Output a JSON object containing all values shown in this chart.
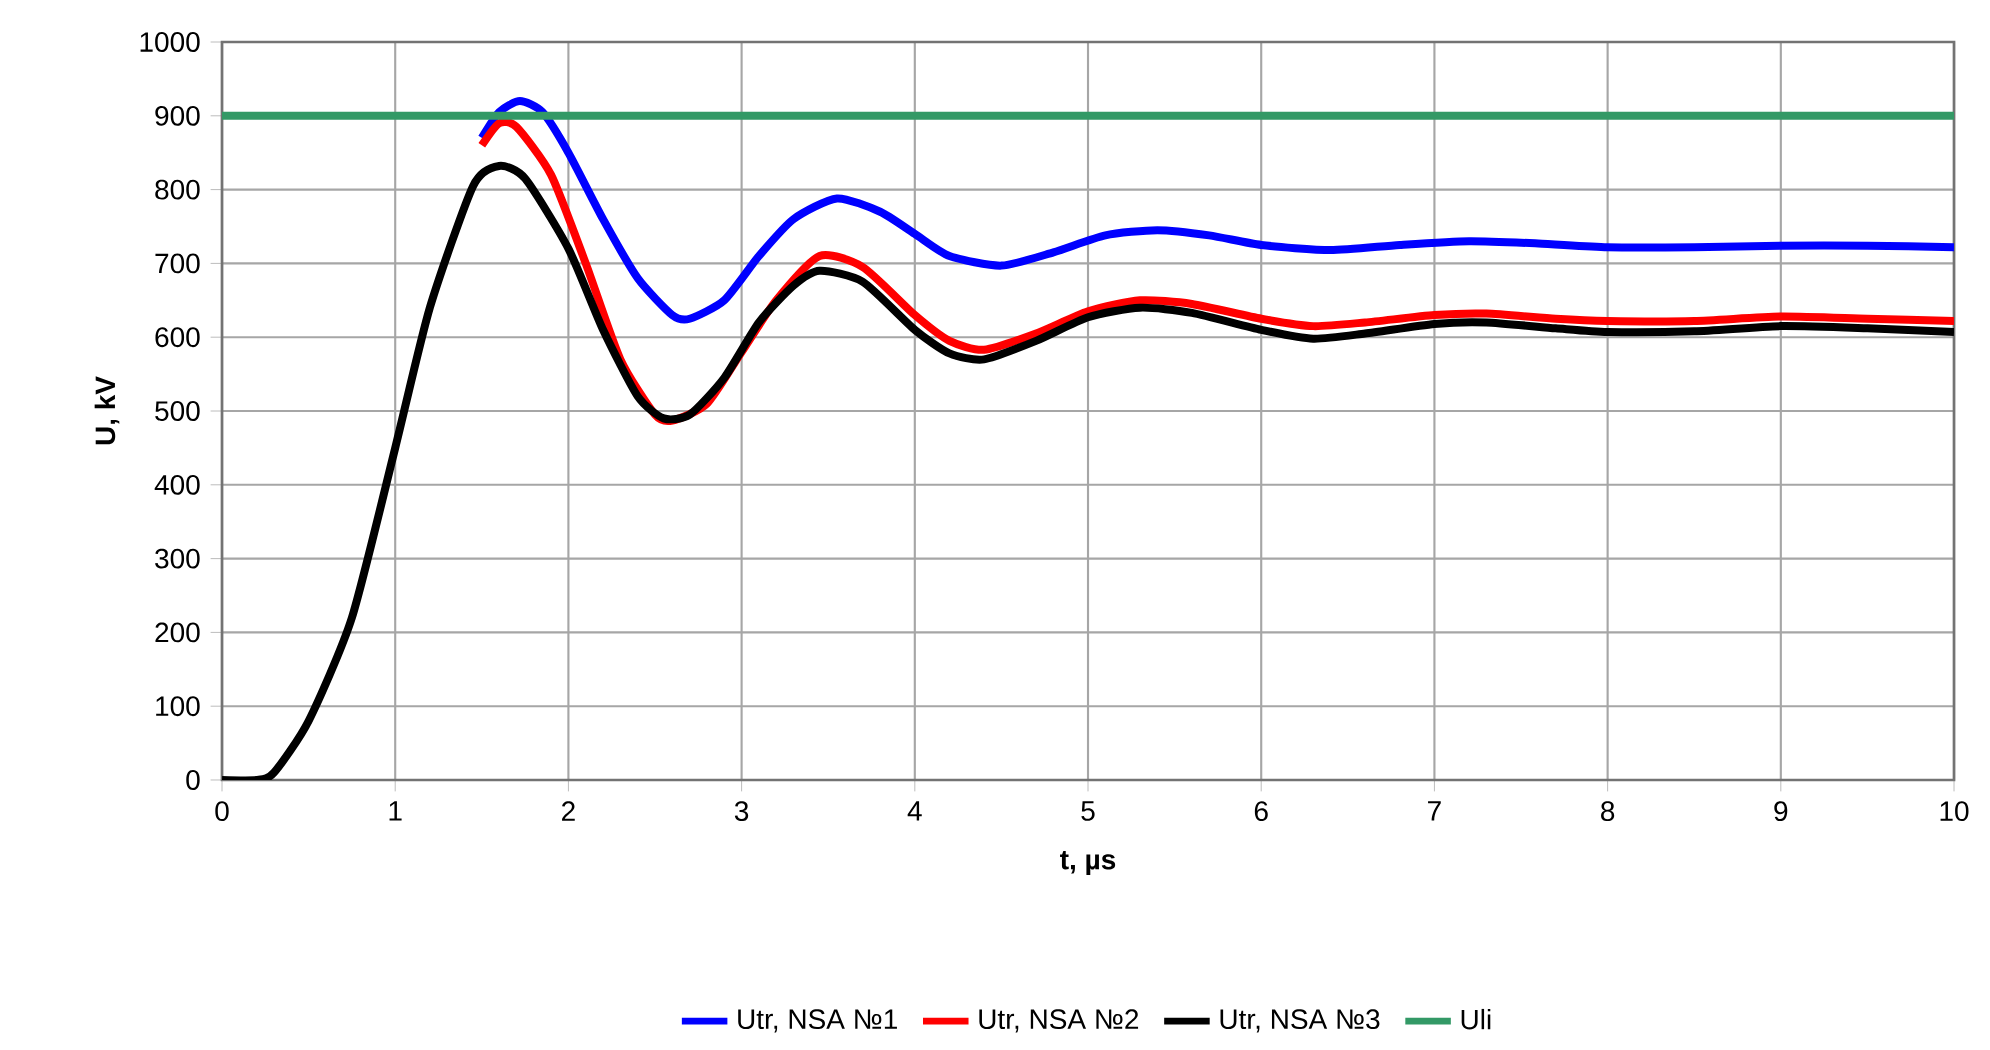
{
  "chart_data": {
    "type": "line",
    "xlabel": "t, µs",
    "ylabel": "U, kV",
    "xlim": [
      0,
      10
    ],
    "ylim": [
      0,
      1000
    ],
    "xticks": [
      0,
      1,
      2,
      3,
      4,
      5,
      6,
      7,
      8,
      9,
      10
    ],
    "yticks": [
      0,
      100,
      200,
      300,
      400,
      500,
      600,
      700,
      800,
      900,
      1000
    ],
    "grid": true,
    "legend": "bottom",
    "marker": "none",
    "line_style": "solid",
    "series": [
      {
        "name": "Utr, NSA №1",
        "color": "#0000ff",
        "x": [
          1.5,
          1.6,
          1.72,
          1.85,
          2.0,
          2.2,
          2.4,
          2.6,
          2.7,
          2.9,
          3.1,
          3.3,
          3.55,
          3.8,
          4.0,
          4.2,
          4.5,
          4.8,
          5.1,
          5.4,
          5.7,
          6.0,
          6.4,
          6.8,
          7.2,
          7.6,
          8.0,
          8.5,
          9.0,
          9.5,
          10
        ],
        "values": [
          870,
          905,
          920,
          905,
          850,
          760,
          680,
          630,
          625,
          650,
          710,
          760,
          788,
          770,
          740,
          710,
          697,
          715,
          738,
          745,
          738,
          725,
          718,
          725,
          730,
          727,
          722,
          722,
          724,
          724,
          722
        ]
      },
      {
        "name": "Utr, NSA №2",
        "color": "#ff0000",
        "x": [
          1.5,
          1.6,
          1.7,
          1.9,
          2.1,
          2.3,
          2.5,
          2.6,
          2.8,
          3.0,
          3.2,
          3.45,
          3.7,
          4.0,
          4.2,
          4.4,
          4.7,
          5.0,
          5.3,
          5.6,
          6.0,
          6.3,
          6.6,
          7.0,
          7.3,
          7.7,
          8.0,
          8.5,
          9.0,
          9.5,
          10
        ],
        "values": [
          860,
          890,
          885,
          820,
          700,
          570,
          495,
          487,
          510,
          580,
          650,
          710,
          695,
          630,
          595,
          583,
          605,
          635,
          650,
          645,
          625,
          615,
          620,
          630,
          632,
          625,
          622,
          622,
          628,
          625,
          622
        ]
      },
      {
        "name": "Utr, NSA №3",
        "color": "#000000",
        "x": [
          0,
          0.2,
          0.3,
          0.5,
          0.75,
          1.0,
          1.2,
          1.45,
          1.6,
          1.75,
          2.0,
          2.2,
          2.4,
          2.55,
          2.7,
          2.9,
          3.1,
          3.3,
          3.45,
          3.7,
          4.0,
          4.2,
          4.4,
          4.7,
          5.0,
          5.3,
          5.6,
          6.0,
          6.3,
          6.6,
          7.0,
          7.3,
          7.7,
          8.0,
          8.5,
          9.0,
          9.5,
          10
        ],
        "values": [
          0,
          0,
          10,
          80,
          220,
          450,
          640,
          805,
          832,
          815,
          720,
          610,
          520,
          490,
          495,
          545,
          620,
          670,
          690,
          675,
          610,
          578,
          570,
          595,
          627,
          640,
          633,
          610,
          598,
          605,
          618,
          620,
          612,
          607,
          608,
          615,
          612,
          607
        ]
      },
      {
        "name": "Uli",
        "color": "#339966",
        "x": [
          0,
          10
        ],
        "values": [
          900,
          900
        ]
      }
    ]
  }
}
